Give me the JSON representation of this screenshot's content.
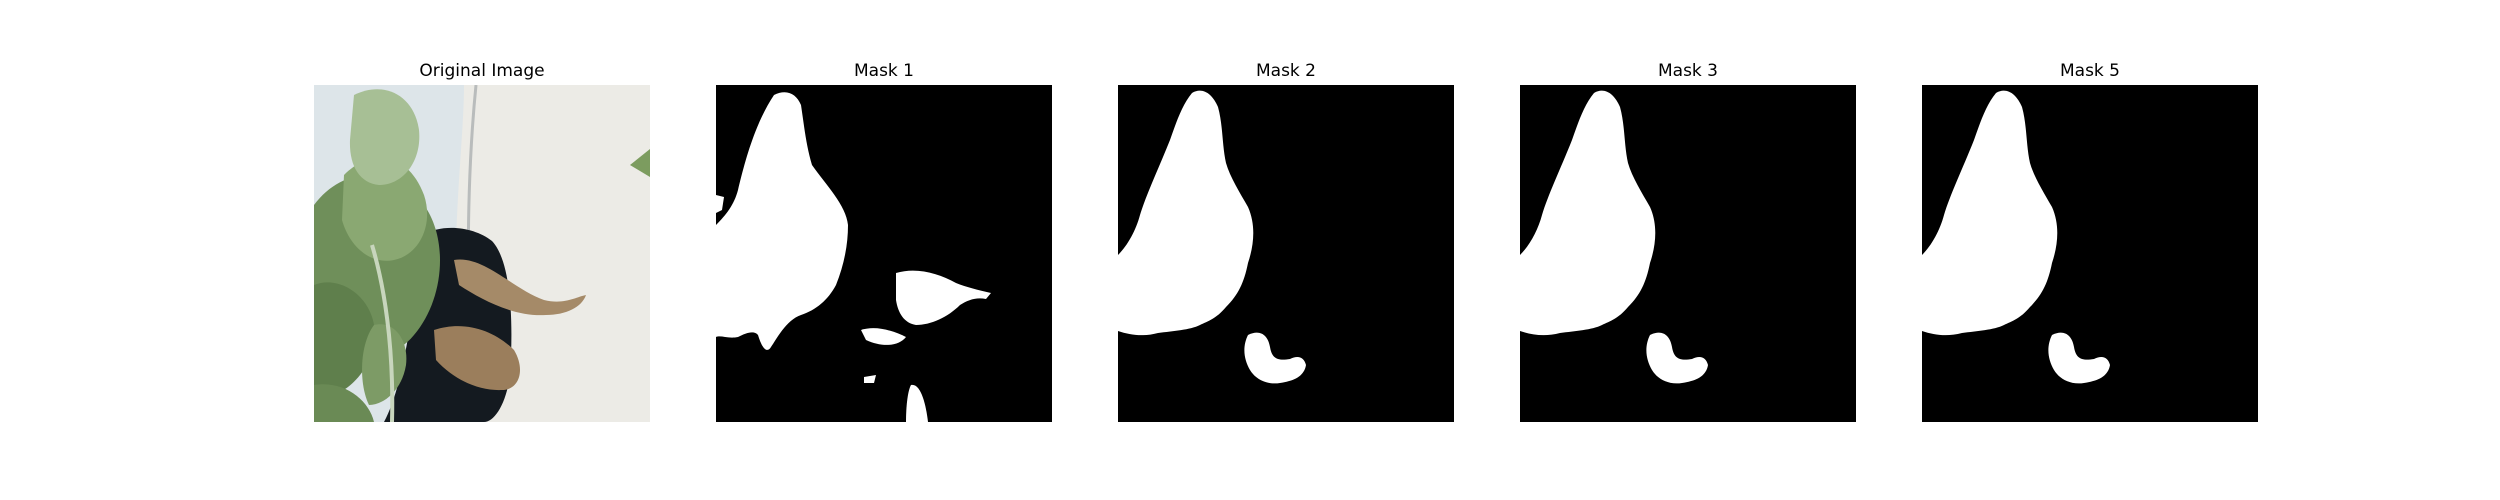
{
  "figure": {
    "panels": [
      {
        "id": "original",
        "title": "Original Image",
        "kind": "photo"
      },
      {
        "id": "mask1",
        "title": "Mask 1",
        "kind": "mask"
      },
      {
        "id": "mask2",
        "title": "Mask 2",
        "kind": "mask"
      },
      {
        "id": "mask3",
        "title": "Mask 3",
        "kind": "mask"
      },
      {
        "id": "mask5",
        "title": "Mask 5",
        "kind": "mask"
      }
    ],
    "colors": {
      "mask_background": "#000000",
      "mask_foreground": "#ffffff",
      "wall": "#dfe6ea",
      "pot": "#ecebe6",
      "pot_shadow": "#141a20",
      "leaf_green": "#6f8f5a",
      "leaf_light": "#a7bf95",
      "leaf_brown": "#a58a68"
    }
  }
}
